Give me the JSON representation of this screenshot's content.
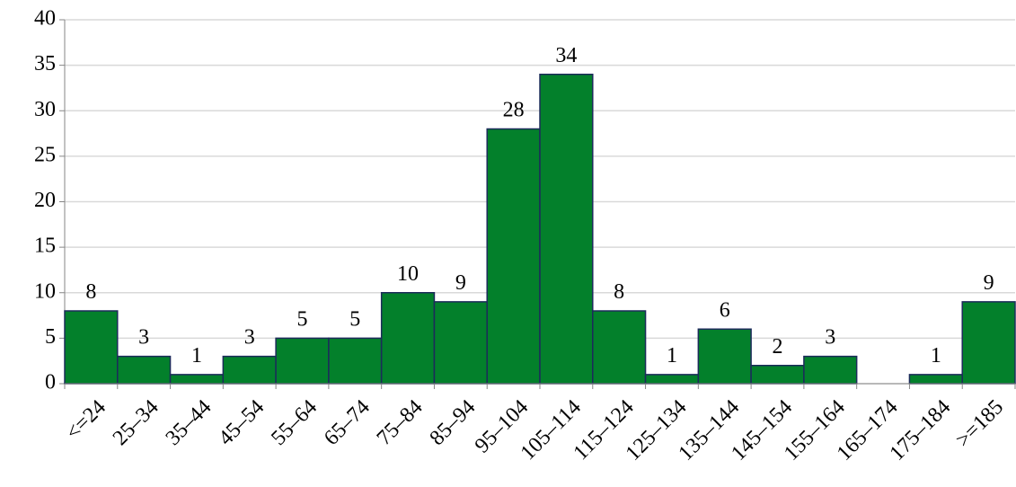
{
  "chart_data": {
    "type": "bar",
    "categories": [
      "<=24",
      "25–34",
      "35–44",
      "45–54",
      "55–64",
      "65–74",
      "75–84",
      "85–94",
      "95–104",
      "105–114",
      "115–124",
      "125–134",
      "135–144",
      "145–154",
      "155–164",
      "165–174",
      "175–184",
      ">=185"
    ],
    "values": [
      8,
      3,
      1,
      3,
      5,
      5,
      10,
      9,
      28,
      34,
      8,
      1,
      6,
      2,
      3,
      0,
      1,
      9
    ],
    "value_labels": [
      "8",
      "3",
      "1",
      "3",
      "5",
      "5",
      "10",
      "9",
      "28",
      "34",
      "8",
      "1",
      "6",
      "2",
      "3",
      null,
      "1",
      "9"
    ],
    "color": "#03802b",
    "ylim": [
      0,
      40
    ],
    "yticks": [
      0,
      5,
      10,
      15,
      20,
      25,
      30,
      35,
      40
    ],
    "grid": true
  }
}
